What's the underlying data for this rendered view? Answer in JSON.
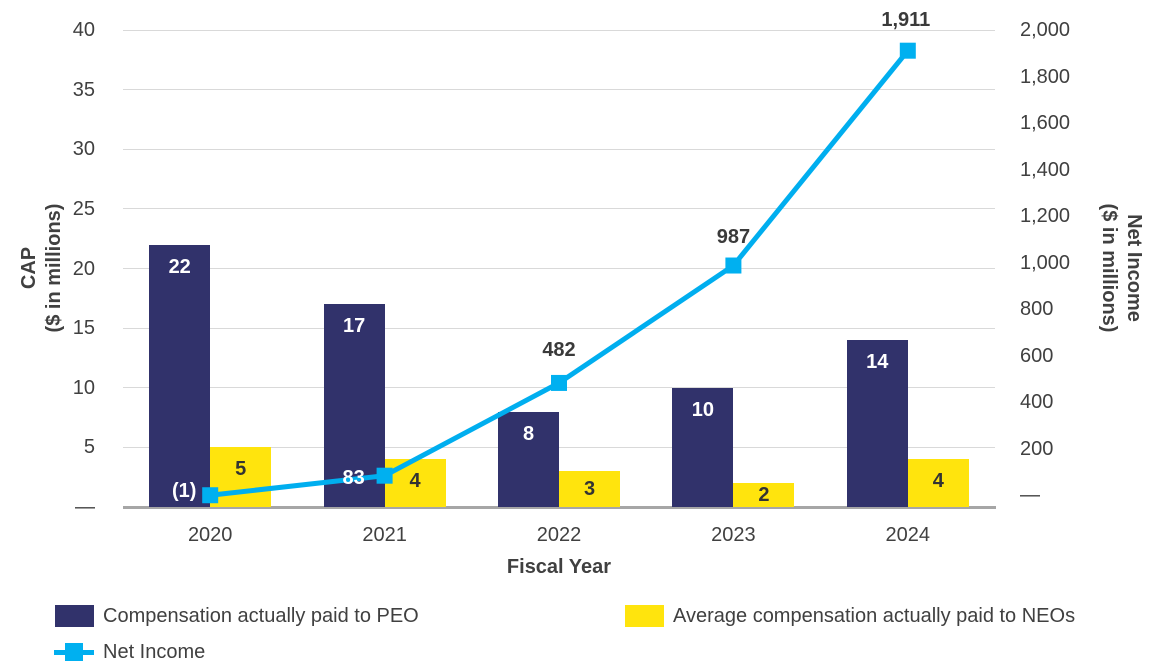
{
  "chart_data": {
    "type": "combo_bar_line",
    "title": "",
    "categories": [
      "2020",
      "2021",
      "2022",
      "2023",
      "2024"
    ],
    "xlabel": "Fiscal Year",
    "series": [
      {
        "name": "Compensation actually paid to PEO",
        "type": "bar",
        "axis": "left",
        "color": "#31326B",
        "label_color": "#FFFFFF",
        "values": [
          22,
          17,
          8,
          10,
          14
        ],
        "labels": [
          "22",
          "17",
          "8",
          "10",
          "14"
        ]
      },
      {
        "name": "Average compensation actually paid to NEOs",
        "type": "bar",
        "axis": "left",
        "color": "#FFE40D",
        "label_color": "#333333",
        "values": [
          5,
          4,
          3,
          2,
          4
        ],
        "labels": [
          "5",
          "4",
          "3",
          "2",
          "4"
        ]
      },
      {
        "name": "Net Income",
        "type": "line",
        "axis": "right",
        "color": "#00AEEF",
        "marker_color": "#00B0F0",
        "label_color": "#3A3A3A",
        "values": [
          -1,
          83,
          482,
          987,
          1911
        ],
        "labels": [
          "(1)",
          "83",
          "482",
          "987",
          "1,911"
        ]
      }
    ],
    "left_axis": {
      "title_line1": "CAP",
      "title_line2": "($ in millions)",
      "ticks": [
        "40",
        "35",
        "30",
        "25",
        "20",
        "15",
        "10",
        "5",
        "—"
      ],
      "tick_values": [
        40,
        35,
        30,
        25,
        20,
        15,
        10,
        5,
        0
      ],
      "range": [
        0,
        40
      ],
      "grid": true
    },
    "right_axis": {
      "title_line1": "Net Income",
      "title_line2": "($ in millions)",
      "ticks": [
        "2,000",
        "1,800",
        "1,600",
        "1,400",
        "1,200",
        "1,000",
        "800",
        "600",
        "400",
        "200",
        "—"
      ],
      "tick_values": [
        2000,
        1800,
        1600,
        1400,
        1200,
        1000,
        800,
        600,
        400,
        200,
        0
      ],
      "range": [
        0,
        2000
      ]
    },
    "legend_position": "bottom"
  },
  "legend": {
    "items": [
      {
        "label": "Compensation actually paid to PEO"
      },
      {
        "label": "Average compensation actually paid to NEOs"
      },
      {
        "label": "Net Income"
      }
    ]
  },
  "colors": {
    "gridline": "#D9D9D9",
    "axis_line": "#A6A6A6",
    "text": "#404040"
  }
}
